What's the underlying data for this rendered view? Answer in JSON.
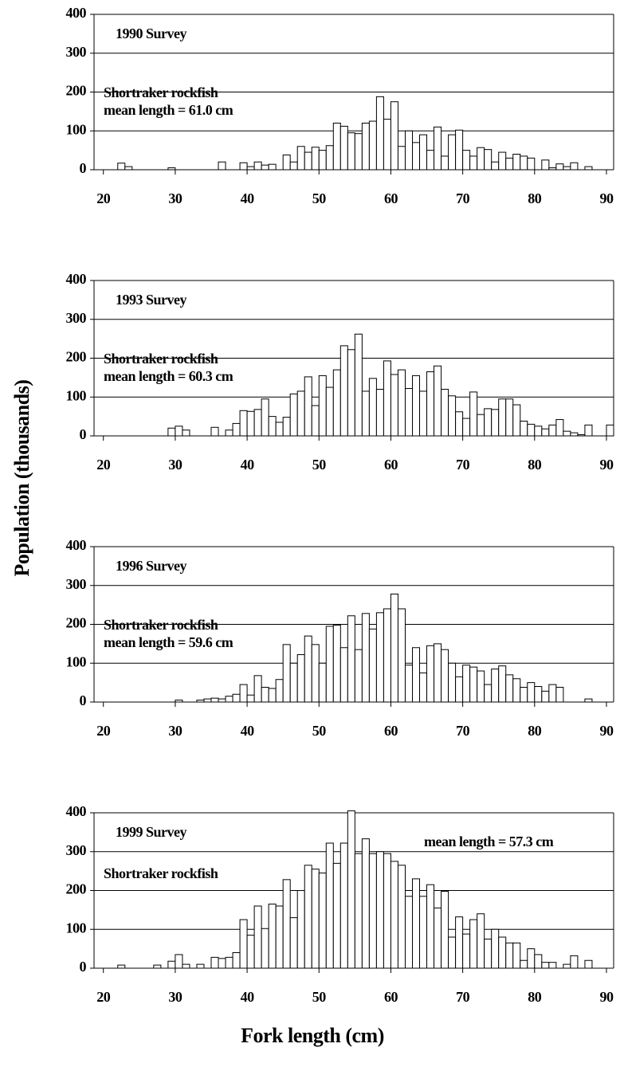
{
  "ylabel": "Population (thousands)",
  "xlabel": "Fork length (cm)",
  "chart_data": [
    {
      "type": "histogram",
      "title": "1990 Survey",
      "annotations": [
        "Shortraker rockfish",
        "mean length = 61.0 cm"
      ],
      "bins": [
        19,
        20,
        21,
        22,
        23,
        24,
        25,
        26,
        27,
        28,
        29,
        30,
        31,
        32,
        33,
        34,
        35,
        36,
        37,
        38,
        39,
        40,
        41,
        42,
        43,
        44,
        45,
        46,
        47,
        48,
        49,
        50,
        51,
        52,
        53,
        54,
        55,
        56,
        57,
        58,
        59,
        60,
        61,
        62,
        63,
        64,
        65,
        66,
        67,
        68,
        69,
        70,
        71,
        72,
        73,
        74,
        75,
        76,
        77,
        78,
        79,
        80,
        81,
        82,
        83,
        84,
        85,
        86,
        87,
        88,
        89,
        90,
        91
      ],
      "values": [
        0,
        0,
        0,
        17,
        8,
        0,
        0,
        0,
        0,
        0,
        5,
        0,
        0,
        0,
        0,
        0,
        0,
        20,
        0,
        0,
        18,
        8,
        20,
        12,
        14,
        0,
        38,
        20,
        60,
        45,
        58,
        50,
        62,
        120,
        112,
        95,
        93,
        120,
        125,
        188,
        130,
        175,
        60,
        100,
        70,
        90,
        50,
        110,
        35,
        90,
        102,
        50,
        35,
        57,
        52,
        20,
        45,
        30,
        40,
        35,
        30,
        0,
        25,
        5,
        15,
        8,
        18,
        0,
        8,
        0,
        0,
        0
      ],
      "color": "#ffffff",
      "edgecolor": "#000000",
      "xlim": [
        18.7,
        91
      ],
      "ylim": [
        0,
        400
      ],
      "xticks": [
        20,
        30,
        40,
        50,
        60,
        70,
        80,
        90
      ],
      "yticks": [
        0,
        100,
        200,
        300,
        400
      ],
      "grid": true
    },
    {
      "type": "histogram",
      "title": "1993 Survey",
      "annotations": [
        "Shortraker rockfish",
        "mean length = 60.3 cm"
      ],
      "bins": [
        19,
        20,
        21,
        22,
        23,
        24,
        25,
        26,
        27,
        28,
        29,
        30,
        31,
        32,
        33,
        34,
        35,
        36,
        37,
        38,
        39,
        40,
        41,
        42,
        43,
        44,
        45,
        46,
        47,
        48,
        49,
        50,
        51,
        52,
        53,
        54,
        55,
        56,
        57,
        58,
        59,
        60,
        61,
        62,
        63,
        64,
        65,
        66,
        67,
        68,
        69,
        70,
        71,
        72,
        73,
        74,
        75,
        76,
        77,
        78,
        79,
        80,
        81,
        82,
        83,
        84,
        85,
        86,
        87,
        88,
        89,
        90,
        91
      ],
      "values": [
        0,
        0,
        0,
        0,
        0,
        0,
        0,
        0,
        0,
        0,
        20,
        25,
        15,
        0,
        0,
        0,
        22,
        0,
        15,
        32,
        65,
        63,
        68,
        95,
        50,
        35,
        48,
        108,
        115,
        152,
        78,
        155,
        125,
        170,
        232,
        222,
        262,
        115,
        148,
        120,
        193,
        158,
        170,
        122,
        155,
        115,
        165,
        180,
        120,
        103,
        62,
        45,
        113,
        55,
        70,
        68,
        95,
        95,
        80,
        38,
        30,
        25,
        18,
        28,
        42,
        12,
        8,
        3,
        28,
        0,
        0,
        28
      ],
      "color": "#ffffff",
      "edgecolor": "#000000",
      "xlim": [
        18.7,
        91
      ],
      "ylim": [
        0,
        400
      ],
      "xticks": [
        20,
        30,
        40,
        50,
        60,
        70,
        80,
        90
      ],
      "yticks": [
        0,
        100,
        200,
        300,
        400
      ],
      "grid": true
    },
    {
      "type": "histogram",
      "title": "1996 Survey",
      "annotations": [
        "Shortraker rockfish",
        "mean length = 59.6 cm"
      ],
      "bins": [
        19,
        20,
        21,
        22,
        23,
        24,
        25,
        26,
        27,
        28,
        29,
        30,
        31,
        32,
        33,
        34,
        35,
        36,
        37,
        38,
        39,
        40,
        41,
        42,
        43,
        44,
        45,
        46,
        47,
        48,
        49,
        50,
        51,
        52,
        53,
        54,
        55,
        56,
        57,
        58,
        59,
        60,
        61,
        62,
        63,
        64,
        65,
        66,
        67,
        68,
        69,
        70,
        71,
        72,
        73,
        74,
        75,
        76,
        77,
        78,
        79,
        80,
        81,
        82,
        83,
        84,
        85,
        86,
        87,
        88,
        89,
        90,
        91
      ],
      "values": [
        0,
        0,
        0,
        0,
        0,
        0,
        0,
        0,
        0,
        0,
        0,
        5,
        0,
        0,
        5,
        8,
        10,
        8,
        15,
        20,
        45,
        18,
        68,
        38,
        35,
        58,
        148,
        100,
        122,
        170,
        148,
        100,
        195,
        198,
        140,
        222,
        135,
        228,
        188,
        230,
        240,
        278,
        240,
        95,
        140,
        75,
        145,
        150,
        135,
        100,
        65,
        95,
        90,
        80,
        45,
        85,
        93,
        70,
        60,
        38,
        50,
        40,
        28,
        45,
        38,
        0,
        0,
        0,
        8,
        0,
        0,
        0
      ],
      "color": "#ffffff",
      "edgecolor": "#000000",
      "xlim": [
        18.7,
        91
      ],
      "ylim": [
        0,
        400
      ],
      "xticks": [
        20,
        30,
        40,
        50,
        60,
        70,
        80,
        90
      ],
      "yticks": [
        0,
        100,
        200,
        300,
        400
      ],
      "grid": true
    },
    {
      "type": "histogram",
      "title": "1999 Survey",
      "annotations": [
        "Shortraker rockfish",
        "mean length = 57.3 cm"
      ],
      "bins": [
        19,
        20,
        21,
        22,
        23,
        24,
        25,
        26,
        27,
        28,
        29,
        30,
        31,
        32,
        33,
        34,
        35,
        36,
        37,
        38,
        39,
        40,
        41,
        42,
        43,
        44,
        45,
        46,
        47,
        48,
        49,
        50,
        51,
        52,
        53,
        54,
        55,
        56,
        57,
        58,
        59,
        60,
        61,
        62,
        63,
        64,
        65,
        66,
        67,
        68,
        69,
        70,
        71,
        72,
        73,
        74,
        75,
        76,
        77,
        78,
        79,
        80,
        81,
        82,
        83,
        84,
        85,
        86,
        87,
        88,
        89,
        90,
        91
      ],
      "values": [
        0,
        0,
        0,
        8,
        0,
        0,
        0,
        0,
        8,
        0,
        18,
        35,
        10,
        0,
        10,
        0,
        28,
        25,
        28,
        40,
        125,
        85,
        160,
        102,
        165,
        160,
        228,
        130,
        200,
        265,
        255,
        245,
        322,
        270,
        322,
        405,
        295,
        333,
        295,
        300,
        295,
        275,
        265,
        185,
        230,
        185,
        215,
        155,
        198,
        80,
        132,
        88,
        125,
        140,
        75,
        100,
        80,
        65,
        65,
        20,
        50,
        35,
        15,
        15,
        0,
        10,
        32,
        0,
        20,
        0,
        0,
        0
      ],
      "color": "#ffffff",
      "edgecolor": "#000000",
      "xlim": [
        18.7,
        91
      ],
      "ylim": [
        0,
        400
      ],
      "xticks": [
        20,
        30,
        40,
        50,
        60,
        70,
        80,
        90
      ],
      "yticks": [
        0,
        100,
        200,
        300,
        400
      ],
      "grid": true
    }
  ]
}
